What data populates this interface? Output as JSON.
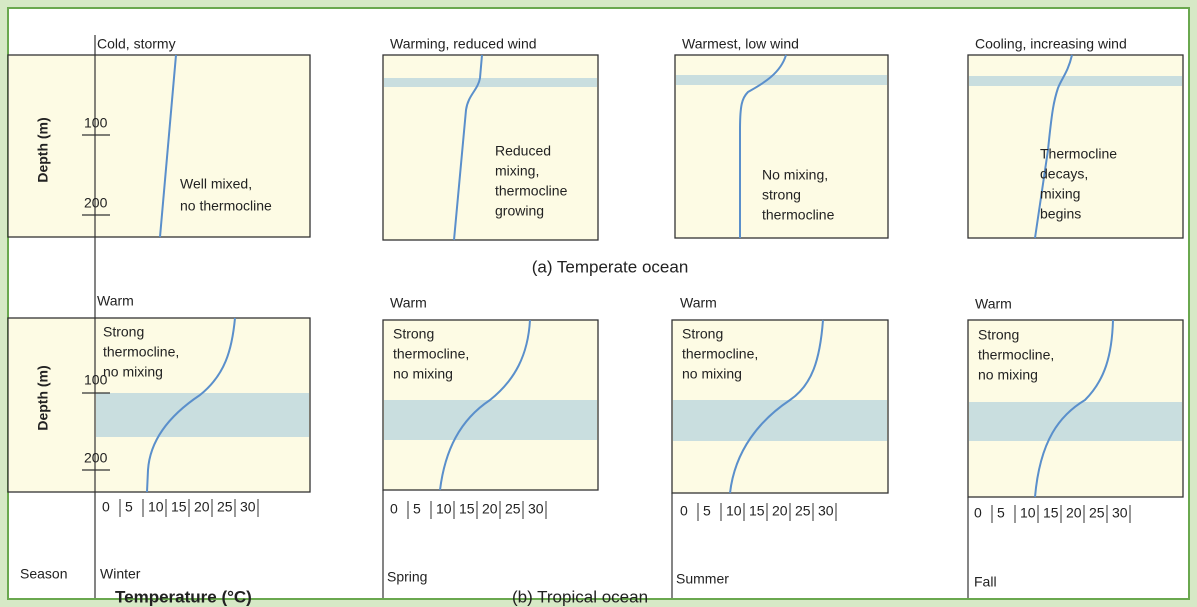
{
  "temperate": {
    "caption": "(a) Temperate ocean",
    "panels": [
      {
        "header": "Cold, stormy",
        "label": [
          "Well mixed,",
          "no thermocline"
        ]
      },
      {
        "header": "Warming, reduced wind",
        "label": [
          "Reduced",
          "mixing,",
          "thermocline",
          "growing"
        ]
      },
      {
        "header": "Warmest, low wind",
        "label": [
          "No mixing,",
          "strong",
          "thermocline"
        ]
      },
      {
        "header": "Cooling, increasing wind",
        "label": [
          "Thermocline",
          "decays,",
          "mixing",
          "begins"
        ]
      }
    ]
  },
  "tropical": {
    "caption": "(b) Tropical ocean",
    "panels": [
      {
        "header": "Warm",
        "label": [
          "Strong",
          "thermocline,",
          "no mixing"
        ],
        "season": "Winter"
      },
      {
        "header": "Warm",
        "label": [
          "Strong",
          "thermocline,",
          "no mixing"
        ],
        "season": "Spring"
      },
      {
        "header": "Warm",
        "label": [
          "Strong",
          "thermocline,",
          "no mixing"
        ],
        "season": "Summer"
      },
      {
        "header": "Warm",
        "label": [
          "Strong",
          "thermocline,",
          "no mixing"
        ],
        "season": "Fall"
      }
    ]
  },
  "depth_axis": {
    "label": "Depth (m)",
    "ticks": [
      100,
      200
    ]
  },
  "temperature_ticks": [
    0,
    5,
    10,
    15,
    20,
    25,
    30
  ],
  "season_label": "Season",
  "temperature_label": "Temperature (°C)"
}
